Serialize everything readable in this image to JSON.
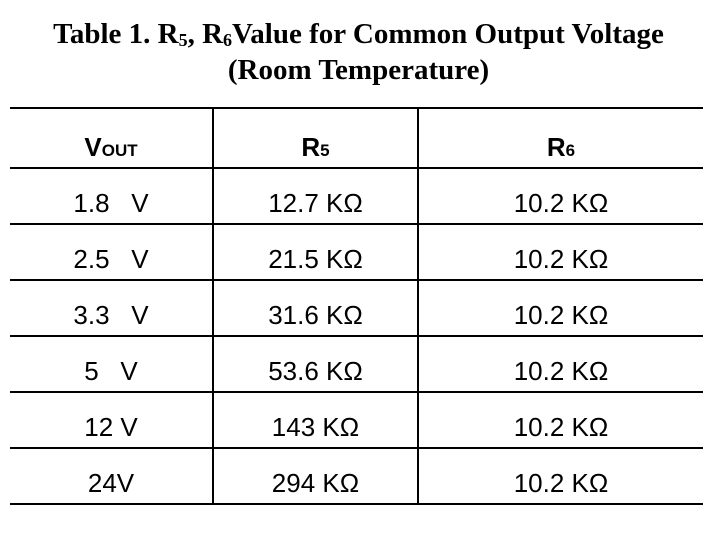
{
  "title": {
    "line1": [
      {
        "text": "Table 1. R"
      },
      {
        "sub": "5"
      },
      {
        "text": ", R"
      },
      {
        "sub": "6"
      },
      {
        "text": "Value for Common Output Voltage"
      }
    ],
    "line2": "(Room Temperature)"
  },
  "table": {
    "header": [
      {
        "text": "V",
        "sub": "OUT"
      },
      {
        "text": "R",
        "sub": "5"
      },
      {
        "text": "R",
        "sub": "6"
      }
    ],
    "rows": [
      [
        "1.8   V",
        "12.7 KΩ",
        "10.2 KΩ"
      ],
      [
        "2.5   V",
        "21.5 KΩ",
        "10.2 KΩ"
      ],
      [
        "3.3   V",
        "31.6 KΩ",
        "10.2 KΩ"
      ],
      [
        "5   V",
        "53.6 KΩ",
        "10.2 KΩ"
      ],
      [
        "12 V",
        "143 KΩ",
        "10.2 KΩ"
      ],
      [
        "24V",
        "294 KΩ",
        "10.2 KΩ"
      ]
    ]
  }
}
